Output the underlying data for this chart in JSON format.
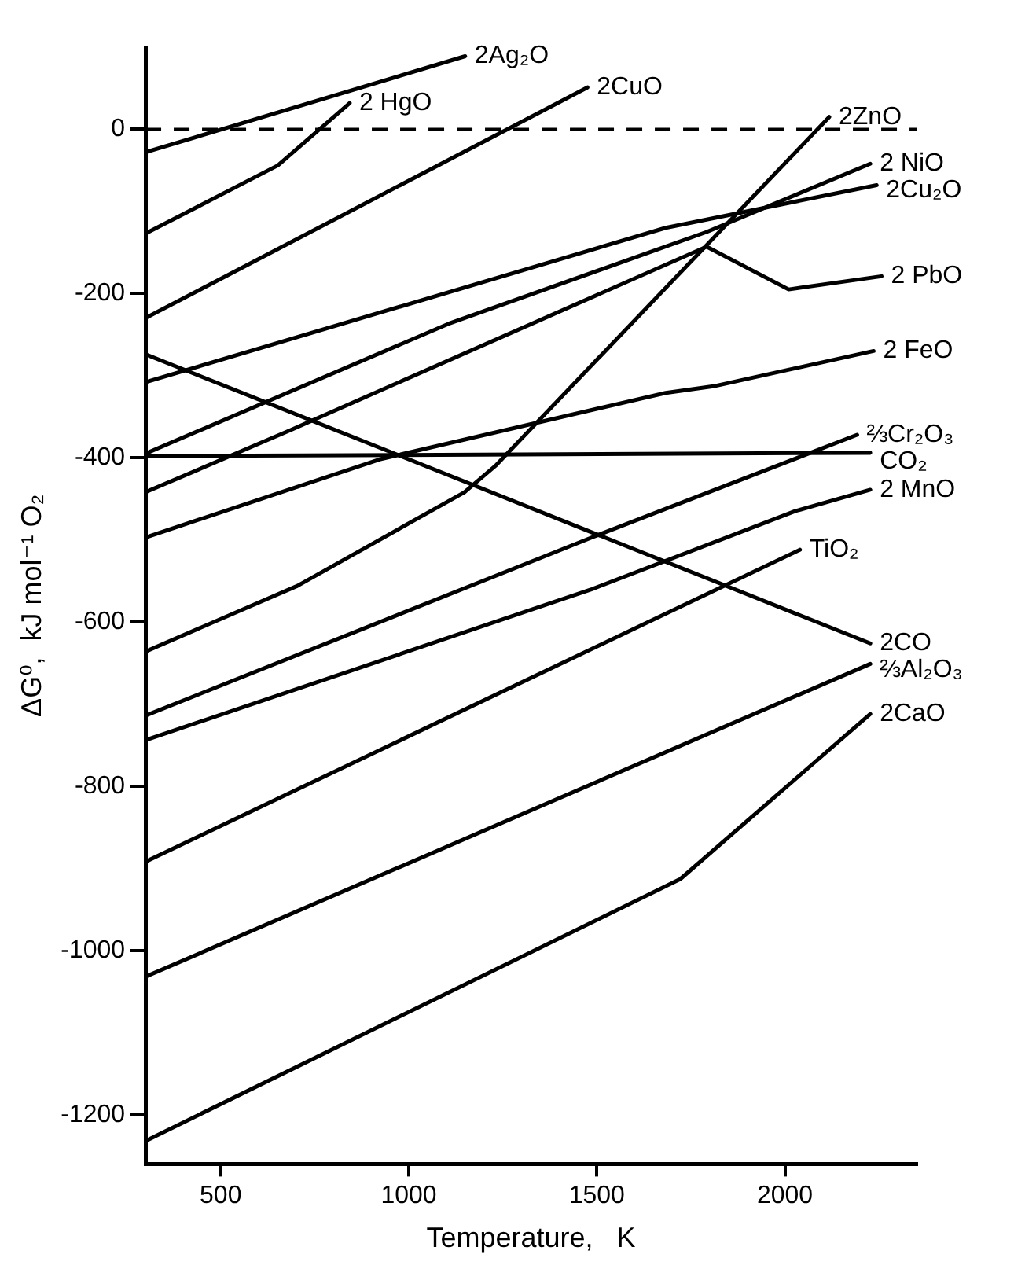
{
  "chart_data": {
    "type": "line",
    "xlabel": "Temperature,   K",
    "ylabel": "ΔG⁰,  kJ mol⁻¹ O₂",
    "xlim": [
      300,
      2350
    ],
    "ylim": [
      -1260,
      100
    ],
    "xticks": [
      500,
      1000,
      1500,
      2000
    ],
    "yticks": [
      0,
      -200,
      -400,
      -600,
      -800,
      -1000,
      -1200
    ],
    "grid": false,
    "legend": false,
    "marker": "none",
    "line_style": "solid",
    "ref_lines": [
      {
        "axis": "y",
        "value": 0,
        "color": "#000000",
        "line_style": "dashed"
      }
    ],
    "series": [
      {
        "name": "2Ag₂O",
        "color": "#000000",
        "x": [
          300,
          1150
        ],
        "values": [
          -28,
          89
        ]
      },
      {
        "name": "2 HgO",
        "color": "#000000",
        "x": [
          300,
          652,
          843
        ],
        "values": [
          -127,
          -44,
          32
        ]
      },
      {
        "name": "2CuO",
        "color": "#000000",
        "x": [
          300,
          1475
        ],
        "values": [
          -230,
          51
        ]
      },
      {
        "name": "2ZnO",
        "color": "#000000",
        "x": [
          300,
          704,
          1148,
          1230,
          2118
        ],
        "values": [
          -636,
          -556,
          -442,
          -410,
          15
        ]
      },
      {
        "name": "2 NiO",
        "color": "#000000",
        "x": [
          300,
          1105,
          1792,
          2227
        ],
        "values": [
          -395,
          -237,
          -125,
          -42
        ]
      },
      {
        "name": "2Cu₂O",
        "color": "#000000",
        "x": [
          300,
          1683,
          2244
        ],
        "values": [
          -308,
          -120,
          -68
        ]
      },
      {
        "name": "2 PbO",
        "color": "#000000",
        "x": [
          300,
          687,
          1792,
          2010,
          2257
        ],
        "values": [
          -442,
          -366,
          -143,
          -195,
          -179
        ]
      },
      {
        "name": "2 FeO",
        "color": "#000000",
        "x": [
          300,
          922,
          1683,
          1810,
          2236
        ],
        "values": [
          -497,
          -402,
          -321,
          -313,
          -270
        ]
      },
      {
        "name": "⅔Cr₂O₃",
        "color": "#000000",
        "x": [
          300,
          1487,
          2192
        ],
        "values": [
          -714,
          -497,
          -372
        ]
      },
      {
        "name": "CO₂",
        "color": "#000000",
        "x": [
          300,
          2227
        ],
        "values": [
          -398,
          -394
        ]
      },
      {
        "name": "2 MnO",
        "color": "#000000",
        "x": [
          300,
          1487,
          2027,
          2227
        ],
        "values": [
          -744,
          -560,
          -465,
          -439
        ]
      },
      {
        "name": "TiO₂",
        "color": "#000000",
        "x": [
          300,
          2040
        ],
        "values": [
          -892,
          -512
        ]
      },
      {
        "name": "2CO",
        "color": "#000000",
        "x": [
          300,
          2227
        ],
        "values": [
          -274,
          -626
        ]
      },
      {
        "name": "⅔Al₂O₃",
        "color": "#000000",
        "x": [
          300,
          2227
        ],
        "values": [
          -1032,
          -651
        ]
      },
      {
        "name": "2CaO",
        "color": "#000000",
        "x": [
          300,
          1722,
          2227
        ],
        "values": [
          -1232,
          -913,
          -712
        ]
      }
    ]
  }
}
